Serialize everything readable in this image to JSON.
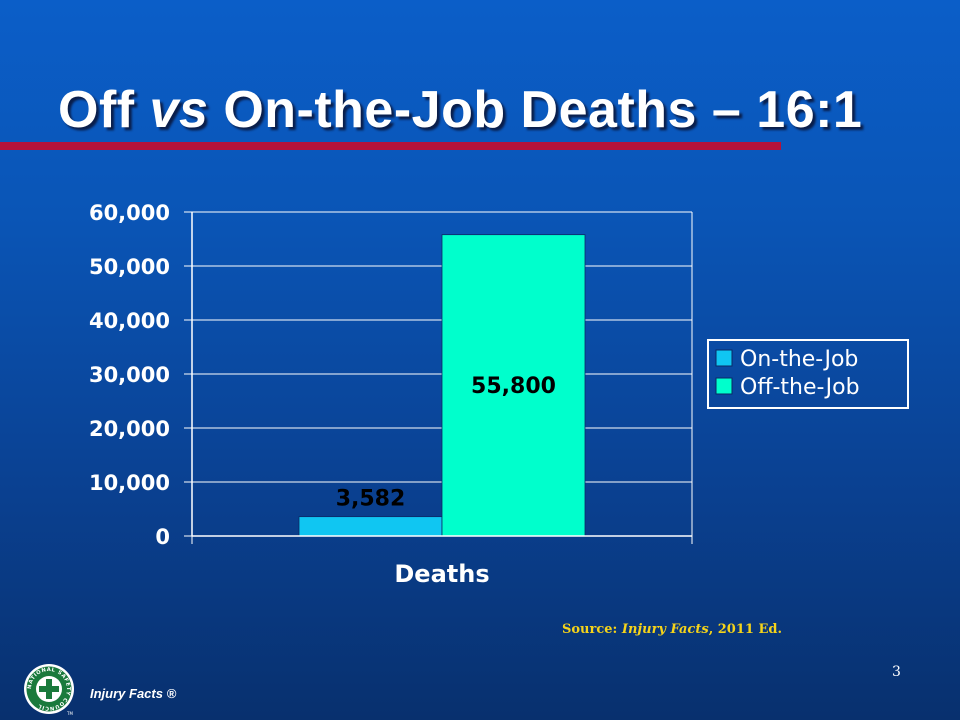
{
  "slide": {
    "title_part1": "Off ",
    "title_vs": "vs",
    "title_part2": " On-the-Job Deaths – 16:1",
    "source_prefix": "Source: ",
    "source_title": "Injury Facts",
    "source_suffix": ", 2011 Ed.",
    "page_number": "3",
    "footer_label": "Injury Facts ®",
    "logo_text": "NATIONAL SAFETY COUNCIL",
    "logo_trademark": "TM"
  },
  "colors": {
    "title_rule": "#b5123a",
    "source_text": "#f5d31a",
    "on_the_job": "#10c6f2",
    "off_the_job": "#00ffcc"
  },
  "chart_data": {
    "type": "bar",
    "categories": [
      "Deaths"
    ],
    "series": [
      {
        "name": "On-the-Job",
        "values": [
          3582
        ],
        "label": "3,582",
        "color": "#10c6f2"
      },
      {
        "name": "Off-the-Job",
        "values": [
          55800
        ],
        "label": "55,800",
        "color": "#00ffcc"
      }
    ],
    "ylim": [
      0,
      60000
    ],
    "yticks": [
      0,
      10000,
      20000,
      30000,
      40000,
      50000,
      60000
    ],
    "ytick_labels": [
      "0",
      "10,000",
      "20,000",
      "30,000",
      "40,000",
      "50,000",
      "60,000"
    ],
    "xlabel": "",
    "ylabel": "",
    "grid": true,
    "legend": "right"
  }
}
